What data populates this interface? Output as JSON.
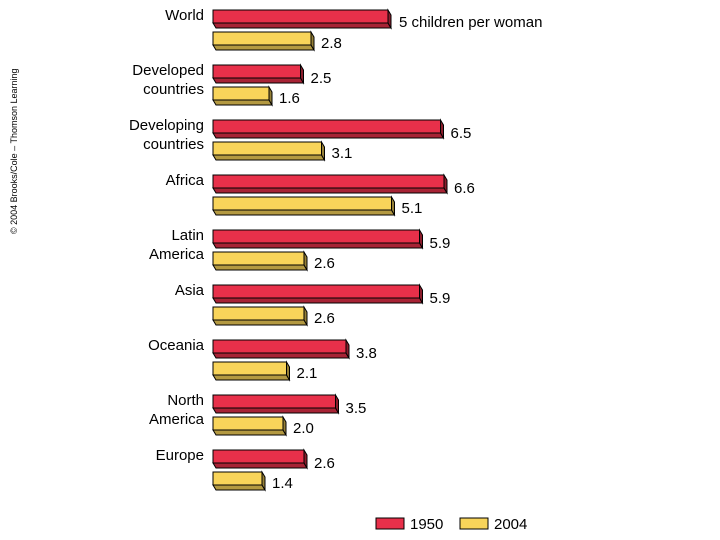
{
  "credit": "© 2004 Brooks/Cole – Thomson Learning",
  "chart_data": {
    "type": "bar",
    "orientation": "horizontal",
    "title": "",
    "xlabel": "",
    "ylabel": "",
    "unit_label": "5 children per woman",
    "xlim": [
      0,
      7
    ],
    "grid": false,
    "categories": [
      [
        "World"
      ],
      [
        "Developed",
        "countries"
      ],
      [
        "Developing",
        "countries"
      ],
      [
        "Africa"
      ],
      [
        "Latin",
        "America"
      ],
      [
        "Asia"
      ],
      [
        "Oceania"
      ],
      [
        "North",
        "America"
      ],
      [
        "Europe"
      ]
    ],
    "series": [
      {
        "name": "1950",
        "color": "#e8304a",
        "values": [
          5.0,
          2.5,
          6.5,
          6.6,
          5.9,
          5.9,
          3.8,
          3.5,
          2.6
        ],
        "labels": [
          "",
          "2.5",
          "6.5",
          "6.6",
          "5.9",
          "5.9",
          "3.8",
          "3.5",
          "2.6"
        ]
      },
      {
        "name": "2004",
        "color": "#f8d45a",
        "values": [
          2.8,
          1.6,
          3.1,
          5.1,
          2.6,
          2.6,
          2.1,
          2.0,
          1.4
        ],
        "labels": [
          "2.8",
          "1.6",
          "3.1",
          "5.1",
          "2.6",
          "2.6",
          "2.1",
          "2.0",
          "1.4"
        ]
      }
    ],
    "legend": {
      "position": "bottom-right",
      "entries": [
        "1950",
        "2004"
      ]
    }
  }
}
